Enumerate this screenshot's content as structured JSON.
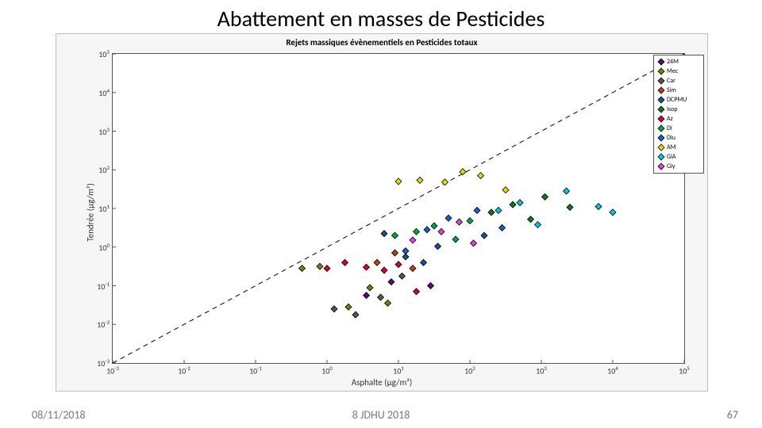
{
  "slide": {
    "title": "Abattement en masses de Pesticides",
    "footer_date": "08/11/2018",
    "footer_center": "8 JDHU 2018",
    "footer_page": "67"
  },
  "chart": {
    "type": "scatter",
    "title": "Rejets massiques évènementiels en Pesticides totaux",
    "xlabel": "Asphalte (µg/m²)",
    "ylabel": "Tendrée (µg/m²)",
    "background_color": "#f6f6f6",
    "plot_bg": "#ffffff",
    "axis_color": "#555555",
    "x_log_range": [
      -3,
      5
    ],
    "y_log_range": [
      -3,
      5
    ],
    "xticks": [
      -3,
      -2,
      -1,
      0,
      1,
      2,
      3,
      4,
      5
    ],
    "yticks": [
      -3,
      -2,
      -1,
      0,
      1,
      2,
      3,
      4,
      5
    ],
    "diagonal": {
      "from": [
        -3,
        -3
      ],
      "to": [
        5,
        5
      ],
      "style": "dashed",
      "color": "#000000",
      "width": 1
    },
    "marker": {
      "shape": "diamond",
      "size": 8,
      "edge_color": "#000000",
      "edge_width": 0.8
    },
    "series": [
      {
        "id": "24M",
        "label": "24M",
        "color": "#6a0080"
      },
      {
        "id": "Mec",
        "label": "Mec",
        "color": "#808000"
      },
      {
        "id": "Car",
        "label": "Car",
        "color": "#555555"
      },
      {
        "id": "Sim",
        "label": "Sim",
        "color": "#c04000"
      },
      {
        "id": "DCPMU",
        "label": "DCPMU",
        "color": "#1b4aa8"
      },
      {
        "id": "Isop",
        "label": "Isop",
        "color": "#0b7a20"
      },
      {
        "id": "Az",
        "label": "Az",
        "color": "#e00028"
      },
      {
        "id": "Di",
        "label": "Di",
        "color": "#00a84c"
      },
      {
        "id": "Diu",
        "label": "Diu",
        "color": "#1560d0"
      },
      {
        "id": "AM",
        "label": "AM",
        "color": "#e8d800"
      },
      {
        "id": "GlA",
        "label": "GlA",
        "color": "#00c8e8"
      },
      {
        "id": "Gly",
        "label": "Gly",
        "color": "#e040e0"
      }
    ],
    "points": [
      {
        "s": "AM",
        "x": 1.0,
        "y": 1.7
      },
      {
        "s": "AM",
        "x": 1.3,
        "y": 1.73
      },
      {
        "s": "AM",
        "x": 1.65,
        "y": 1.68
      },
      {
        "s": "AM",
        "x": 1.9,
        "y": 1.95
      },
      {
        "s": "AM",
        "x": 2.15,
        "y": 1.85
      },
      {
        "s": "AM",
        "x": 2.5,
        "y": 1.48
      },
      {
        "s": "GlA",
        "x": 2.4,
        "y": 0.95
      },
      {
        "s": "GlA",
        "x": 2.7,
        "y": 1.15
      },
      {
        "s": "GlA",
        "x": 2.95,
        "y": 0.58
      },
      {
        "s": "GlA",
        "x": 3.35,
        "y": 1.45
      },
      {
        "s": "GlA",
        "x": 3.8,
        "y": 1.05
      },
      {
        "s": "GlA",
        "x": 4.0,
        "y": 0.9
      },
      {
        "s": "Isop",
        "x": 2.3,
        "y": 0.9
      },
      {
        "s": "Isop",
        "x": 2.6,
        "y": 1.1
      },
      {
        "s": "Isop",
        "x": 2.85,
        "y": 0.72
      },
      {
        "s": "Isop",
        "x": 3.05,
        "y": 1.3
      },
      {
        "s": "Isop",
        "x": 3.4,
        "y": 1.03
      },
      {
        "s": "Di",
        "x": 0.95,
        "y": 0.3
      },
      {
        "s": "Di",
        "x": 1.25,
        "y": 0.4
      },
      {
        "s": "Di",
        "x": 1.5,
        "y": 0.55
      },
      {
        "s": "Di",
        "x": 1.8,
        "y": 0.2
      },
      {
        "s": "Di",
        "x": 2.0,
        "y": 0.68
      },
      {
        "s": "Diu",
        "x": 1.1,
        "y": -0.1
      },
      {
        "s": "Diu",
        "x": 1.4,
        "y": 0.45
      },
      {
        "s": "Diu",
        "x": 1.7,
        "y": 0.75
      },
      {
        "s": "Diu",
        "x": 2.1,
        "y": 0.95
      },
      {
        "s": "Diu",
        "x": 2.45,
        "y": 0.5
      },
      {
        "s": "DCPMU",
        "x": 0.8,
        "y": 0.35
      },
      {
        "s": "DCPMU",
        "x": 1.1,
        "y": -0.25
      },
      {
        "s": "DCPMU",
        "x": 1.35,
        "y": -0.4
      },
      {
        "s": "DCPMU",
        "x": 1.55,
        "y": 0.02
      },
      {
        "s": "DCPMU",
        "x": 2.2,
        "y": 0.3
      },
      {
        "s": "Gly",
        "x": 1.2,
        "y": 0.18
      },
      {
        "s": "Gly",
        "x": 1.6,
        "y": 0.4
      },
      {
        "s": "Gly",
        "x": 1.85,
        "y": 0.65
      },
      {
        "s": "Gly",
        "x": 2.05,
        "y": 0.1
      },
      {
        "s": "Az",
        "x": 0.0,
        "y": -0.55
      },
      {
        "s": "Az",
        "x": 0.25,
        "y": -0.4
      },
      {
        "s": "Az",
        "x": 0.55,
        "y": -0.52
      },
      {
        "s": "Az",
        "x": 0.8,
        "y": -0.6
      },
      {
        "s": "Az",
        "x": 1.0,
        "y": -0.45
      },
      {
        "s": "Az",
        "x": 1.25,
        "y": -1.15
      },
      {
        "s": "Mec",
        "x": -0.35,
        "y": -0.55
      },
      {
        "s": "Mec",
        "x": -0.1,
        "y": -0.5
      },
      {
        "s": "Mec",
        "x": 0.3,
        "y": -1.55
      },
      {
        "s": "Mec",
        "x": 0.6,
        "y": -1.05
      },
      {
        "s": "Mec",
        "x": 0.85,
        "y": -1.45
      },
      {
        "s": "Car",
        "x": 0.1,
        "y": -1.6
      },
      {
        "s": "Car",
        "x": 0.4,
        "y": -1.75
      },
      {
        "s": "Car",
        "x": 0.75,
        "y": -1.3
      },
      {
        "s": "Car",
        "x": 1.05,
        "y": -0.75
      },
      {
        "s": "Sim",
        "x": 0.7,
        "y": -0.4
      },
      {
        "s": "Sim",
        "x": 0.95,
        "y": -0.15
      },
      {
        "s": "Sim",
        "x": 1.2,
        "y": -0.55
      },
      {
        "s": "24M",
        "x": 1.45,
        "y": -1.0
      },
      {
        "s": "24M",
        "x": 0.9,
        "y": -0.9
      },
      {
        "s": "24M",
        "x": 0.55,
        "y": -1.25
      }
    ]
  }
}
